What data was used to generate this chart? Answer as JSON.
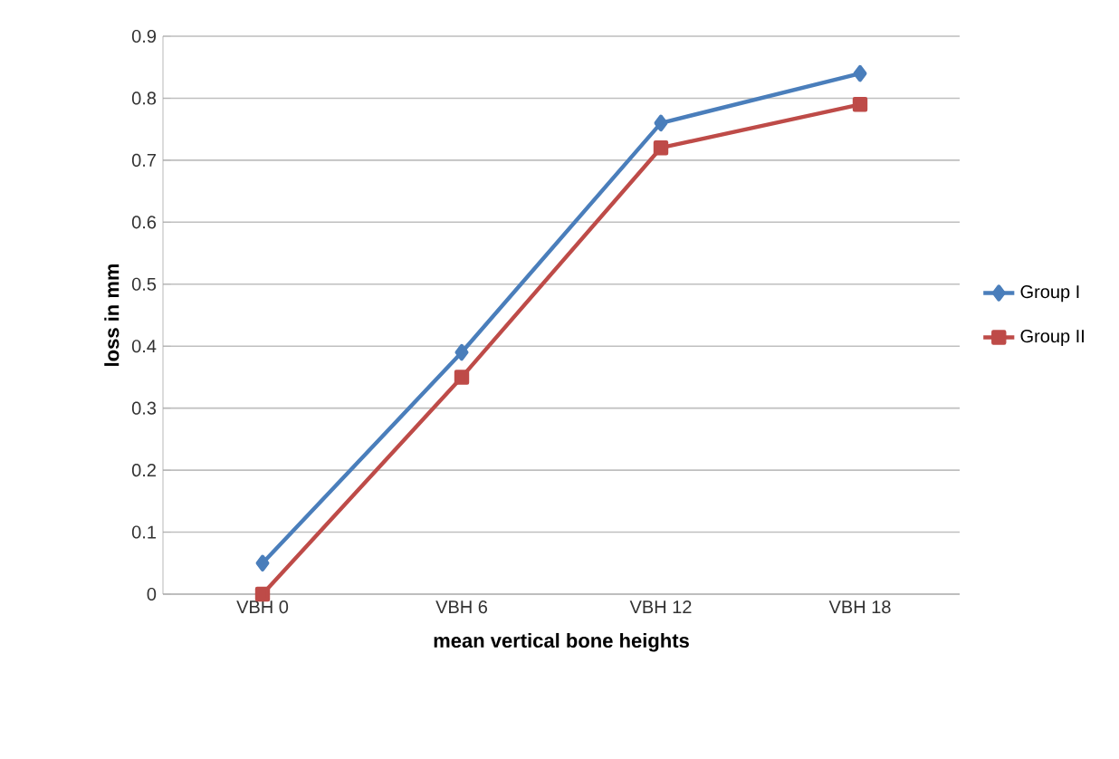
{
  "chart_data": {
    "type": "line",
    "xlabel": "mean vertical bone heights",
    "ylabel": "loss in mm",
    "categories": [
      "VBH 0",
      "VBH 6",
      "VBH 12",
      "VBH 18"
    ],
    "series": [
      {
        "name": "Group I",
        "color": "#4a7ebb",
        "marker": "diamond",
        "values": [
          0.05,
          0.39,
          0.76,
          0.84
        ]
      },
      {
        "name": "Group II",
        "color": "#be4b48",
        "marker": "square",
        "values": [
          0.0,
          0.35,
          0.72,
          0.79
        ]
      }
    ],
    "ylim": [
      0,
      0.9
    ],
    "yticks": [
      0,
      0.1,
      0.2,
      0.3,
      0.4,
      0.5,
      0.6,
      0.7,
      0.8,
      0.9
    ],
    "grid": "y",
    "legend": "right"
  }
}
